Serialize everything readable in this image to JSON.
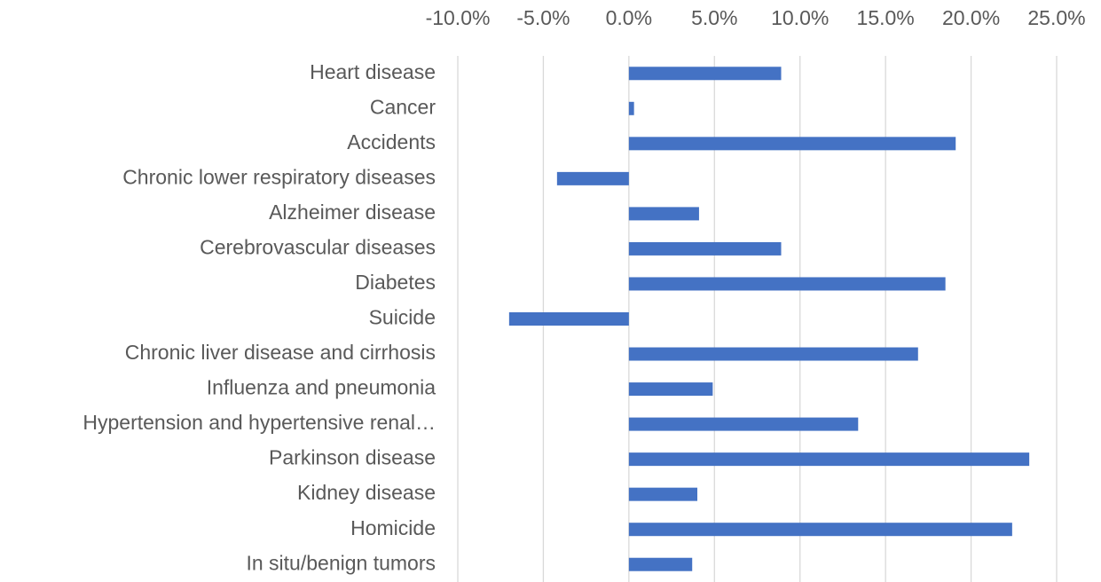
{
  "chart_data": {
    "type": "bar",
    "orientation": "horizontal",
    "axis_position": "top",
    "categories": [
      "Heart disease",
      "Cancer",
      "Accidents",
      "Chronic lower respiratory diseases",
      "Alzheimer disease",
      "Cerebrovascular diseases",
      "Diabetes",
      "Suicide",
      "Chronic liver disease and cirrhosis",
      "Influenza and pneumonia",
      "Hypertension and hypertensive renal…",
      "Parkinson disease",
      "Kidney disease",
      "Homicide",
      "In situ/benign tumors"
    ],
    "values": [
      8.9,
      0.3,
      19.1,
      -4.2,
      4.1,
      8.9,
      18.5,
      -7.0,
      16.9,
      4.9,
      13.4,
      23.4,
      4.0,
      22.4,
      3.7
    ],
    "color": "#4472c4",
    "xlim": [
      -10,
      25
    ],
    "xticks": [
      {
        "value": -10,
        "label": "-10.0%"
      },
      {
        "value": -5,
        "label": "-5.0%"
      },
      {
        "value": 0,
        "label": "0.0%"
      },
      {
        "value": 5,
        "label": "5.0%"
      },
      {
        "value": 10,
        "label": "10.0%"
      },
      {
        "value": 15,
        "label": "15.0%"
      },
      {
        "value": 20,
        "label": "20.0%"
      },
      {
        "value": 25,
        "label": "25.0%"
      }
    ],
    "grid": true
  }
}
